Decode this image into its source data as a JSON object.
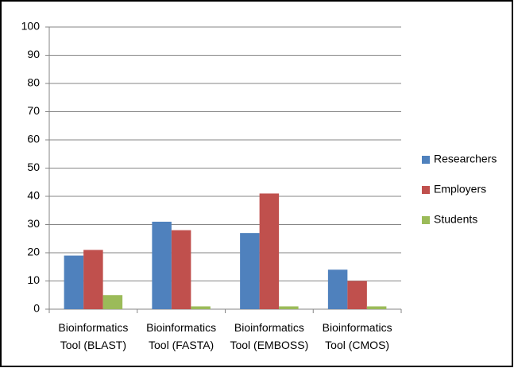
{
  "chart_data": {
    "type": "bar",
    "categories": [
      "Bioinformatics Tool (BLAST)",
      "Bioinformatics Tool (FASTA)",
      "Bioinformatics Tool (EMBOSS)",
      "Bioinformatics Tool (CMOS)"
    ],
    "series": [
      {
        "name": "Researchers",
        "color": "#4f81bd",
        "values": [
          19,
          31,
          27,
          14
        ]
      },
      {
        "name": "Employers",
        "color": "#c0504d",
        "values": [
          21,
          28,
          41,
          10
        ]
      },
      {
        "name": "Students",
        "color": "#9bbb59",
        "values": [
          5,
          1,
          1,
          1
        ]
      }
    ],
    "ylim": [
      0,
      100
    ],
    "yticks": [
      0,
      10,
      20,
      30,
      40,
      50,
      60,
      70,
      80,
      90,
      100
    ],
    "grid": true,
    "legend": "right"
  }
}
